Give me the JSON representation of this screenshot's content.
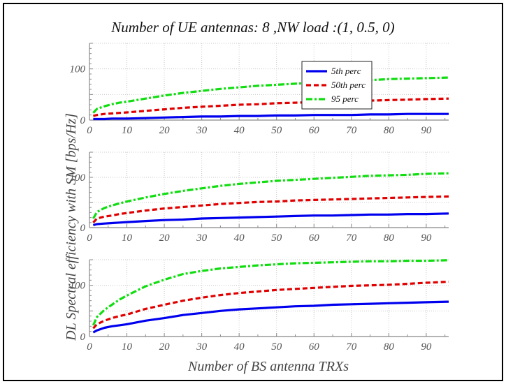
{
  "chart_data": {
    "type": "line",
    "title": "Number of UE antennas: 8 ,NW load :(1, 0.5, 0)",
    "xlabel": "Number of BS antenna TRXs",
    "ylabel": "DL Spectral efficiency with SM [bps/Hz]",
    "xlim": [
      0,
      96
    ],
    "ylim": [
      0,
      150
    ],
    "xticks": [
      0,
      10,
      20,
      30,
      40,
      50,
      60,
      70,
      80,
      90
    ],
    "yticks": [
      0,
      100
    ],
    "grid": true,
    "legend": {
      "placement": "top-right of first panel",
      "entries": [
        "5th perc",
        "50th perc",
        "95 perc"
      ]
    },
    "colors": {
      "5th perc": "#0000ee",
      "50th perc": "#e00000",
      "95 perc": "#11dd11"
    },
    "x": [
      1,
      2,
      4,
      6,
      8,
      10,
      15,
      20,
      25,
      30,
      35,
      40,
      45,
      50,
      55,
      60,
      65,
      70,
      75,
      80,
      85,
      90,
      96
    ],
    "panels": [
      {
        "series": [
          {
            "name": "5th perc",
            "values": [
              2,
              2,
              2,
              3,
              3,
              3,
              4,
              5,
              6,
              7,
              7,
              8,
              8,
              9,
              9,
              10,
              10,
              10,
              11,
              11,
              12,
              12,
              12
            ]
          },
          {
            "name": "50th perc",
            "values": [
              8,
              10,
              12,
              13,
              14,
              15,
              18,
              21,
              24,
              26,
              28,
              30,
              31,
              33,
              34,
              35,
              36,
              37,
              38,
              39,
              40,
              41,
              42
            ]
          },
          {
            "name": "95 perc",
            "values": [
              14,
              22,
              27,
              31,
              34,
              36,
              42,
              48,
              53,
              57,
              61,
              64,
              67,
              69,
              71,
              73,
              75,
              77,
              78,
              80,
              81,
              82,
              83
            ]
          }
        ]
      },
      {
        "series": [
          {
            "name": "5th perc",
            "values": [
              5,
              7,
              8,
              9,
              10,
              11,
              13,
              15,
              16,
              18,
              19,
              20,
              21,
              22,
              23,
              24,
              24,
              25,
              26,
              26,
              27,
              27,
              28
            ]
          },
          {
            "name": "50th perc",
            "values": [
              10,
              18,
              22,
              24,
              27,
              29,
              34,
              38,
              41,
              44,
              47,
              49,
              51,
              52,
              54,
              55,
              56,
              57,
              58,
              59,
              60,
              61,
              62
            ]
          },
          {
            "name": "95 perc",
            "values": [
              18,
              31,
              39,
              44,
              48,
              52,
              60,
              67,
              73,
              78,
              83,
              87,
              90,
              93,
              95,
              97,
              99,
              101,
              103,
              104,
              105,
              107,
              108
            ]
          }
        ]
      },
      {
        "series": [
          {
            "name": "5th perc",
            "values": [
              8,
              12,
              17,
              20,
              22,
              24,
              31,
              36,
              42,
              46,
              50,
              53,
              55,
              57,
              59,
              60,
              62,
              63,
              64,
              65,
              66,
              67,
              68
            ]
          },
          {
            "name": "50th perc",
            "values": [
              16,
              24,
              31,
              36,
              40,
              43,
              54,
              62,
              70,
              76,
              81,
              85,
              88,
              91,
              93,
              95,
              97,
              99,
              100,
              101,
              103,
              105,
              107
            ]
          },
          {
            "name": "95 perc",
            "values": [
              22,
              38,
              52,
              62,
              72,
              80,
              98,
              111,
              122,
              128,
              133,
              136,
              139,
              141,
              143,
              144,
              145,
              146,
              147,
              147,
              148,
              148,
              149
            ]
          }
        ]
      }
    ]
  }
}
